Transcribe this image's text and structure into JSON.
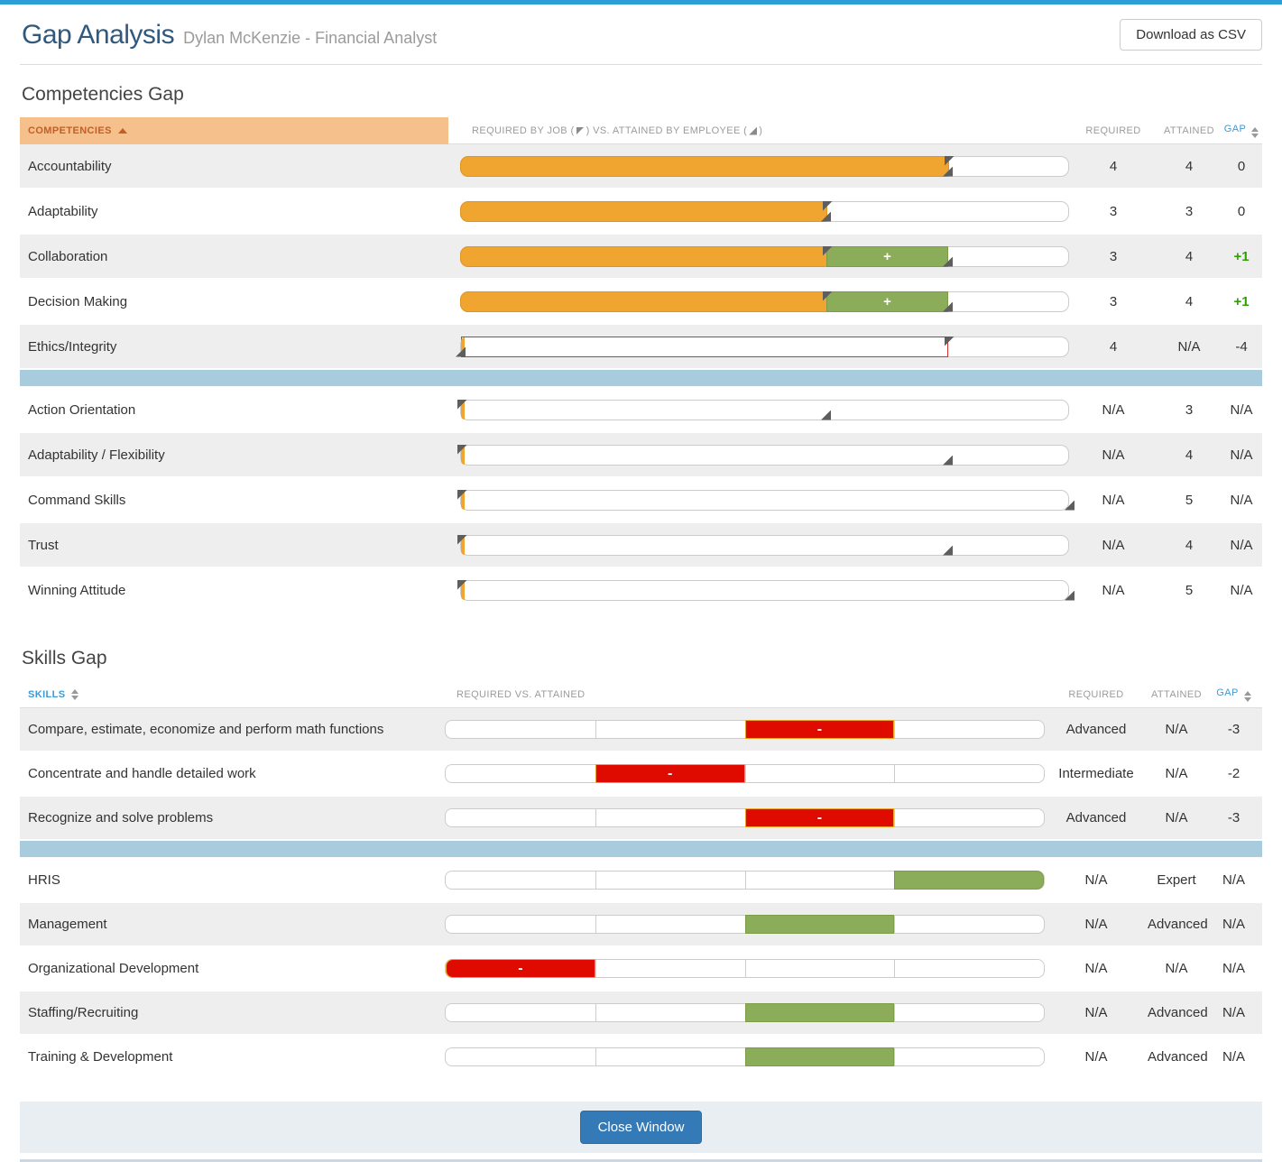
{
  "page": {
    "title": "Gap Analysis",
    "subtitle": "Dylan McKenzie - Financial Analyst",
    "download_button": "Download as CSV",
    "close_button": "Close Window"
  },
  "bar_symbols": {
    "surplus": "+",
    "deficit": "-"
  },
  "competencies": {
    "section_title": "Competencies Gap",
    "columns": {
      "name": "COMPETENCIES",
      "legend_prefix": "REQUIRED BY JOB (",
      "legend_middle": ") VS. ATTAINED BY EMPLOYEE (",
      "legend_suffix": ")",
      "required": "REQUIRED",
      "attained": "ATTAINED",
      "gap": "GAP"
    },
    "scale_max": 5,
    "rows": [
      {
        "label": "Accountability",
        "required": "4",
        "attained": "4",
        "gap": "0",
        "req_val": 4,
        "att_val": 4
      },
      {
        "label": "Adaptability",
        "required": "3",
        "attained": "3",
        "gap": "0",
        "req_val": 3,
        "att_val": 3
      },
      {
        "label": "Collaboration",
        "required": "3",
        "attained": "4",
        "gap": "+1",
        "req_val": 3,
        "att_val": 4,
        "gap_positive": true
      },
      {
        "label": "Decision Making",
        "required": "3",
        "attained": "4",
        "gap": "+1",
        "req_val": 3,
        "att_val": 4,
        "gap_positive": true
      },
      {
        "label": "Ethics/Integrity",
        "required": "4",
        "attained": "N/A",
        "gap": "-4",
        "req_val": 4,
        "att_val": null
      },
      {
        "label": "Action Orientation",
        "required": "N/A",
        "attained": "3",
        "gap": "N/A",
        "req_val": null,
        "att_val": 3
      },
      {
        "label": "Adaptability / Flexibility",
        "required": "N/A",
        "attained": "4",
        "gap": "N/A",
        "req_val": null,
        "att_val": 4
      },
      {
        "label": "Command Skills",
        "required": "N/A",
        "attained": "5",
        "gap": "N/A",
        "req_val": null,
        "att_val": 5
      },
      {
        "label": "Trust",
        "required": "N/A",
        "attained": "4",
        "gap": "N/A",
        "req_val": null,
        "att_val": 4
      },
      {
        "label": "Winning Attitude",
        "required": "N/A",
        "attained": "5",
        "gap": "N/A",
        "req_val": null,
        "att_val": 5
      }
    ]
  },
  "skills": {
    "section_title": "Skills Gap",
    "columns": {
      "name": "SKILLS",
      "bars": "REQUIRED VS. ATTAINED",
      "required": "REQUIRED",
      "attained": "ATTAINED",
      "gap": "GAP"
    },
    "levels": 4,
    "rows": [
      {
        "label": "Compare, estimate, economize and perform math functions",
        "required": "Advanced",
        "attained": "N/A",
        "gap": "-3",
        "req_level": 3,
        "att_level": null
      },
      {
        "label": "Concentrate and handle detailed work",
        "required": "Intermediate",
        "attained": "N/A",
        "gap": "-2",
        "req_level": 2,
        "att_level": null
      },
      {
        "label": "Recognize and solve problems",
        "required": "Advanced",
        "attained": "N/A",
        "gap": "-3",
        "req_level": 3,
        "att_level": null
      },
      {
        "label": "HRIS",
        "required": "N/A",
        "attained": "Expert",
        "gap": "N/A",
        "req_level": null,
        "att_level": 4
      },
      {
        "label": "Management",
        "required": "N/A",
        "attained": "Advanced",
        "gap": "N/A",
        "req_level": null,
        "att_level": 3
      },
      {
        "label": "Organizational Development",
        "required": "N/A",
        "attained": "N/A",
        "gap": "N/A",
        "req_level": null,
        "att_level": null
      },
      {
        "label": "Staffing/Recruiting",
        "required": "N/A",
        "attained": "Advanced",
        "gap": "N/A",
        "req_level": null,
        "att_level": 3
      },
      {
        "label": "Training & Development",
        "required": "N/A",
        "attained": "Advanced",
        "gap": "N/A",
        "req_level": null,
        "att_level": 3
      }
    ]
  }
}
